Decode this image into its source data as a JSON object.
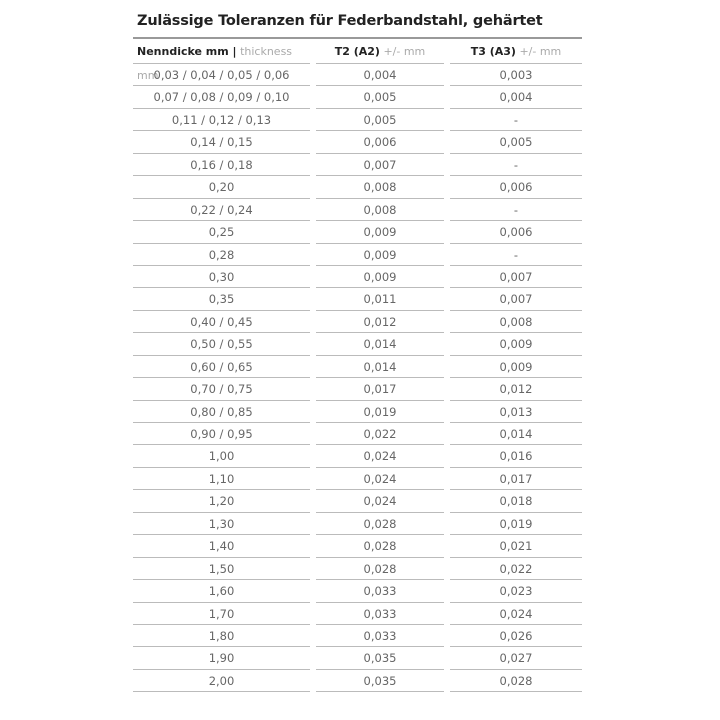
{
  "title": "Zulässige Toleranzen für Federbandstahl, gehärtet",
  "headers": [
    {
      "bold": "Nenndicke mm |",
      "light": "thickness mm"
    },
    {
      "bold": "T2 (A2)",
      "light": "+/- mm"
    },
    {
      "bold": "T3 (A3)",
      "light": "+/- mm"
    }
  ],
  "rows": [
    [
      "0,03 / 0,04 / 0,05 / 0,06",
      "0,004",
      "0,003"
    ],
    [
      "0,07 / 0,08 / 0,09 / 0,10",
      "0,005",
      "0,004"
    ],
    [
      "0,11 / 0,12 / 0,13",
      "0,005",
      "-"
    ],
    [
      "0,14 / 0,15",
      "0,006",
      "0,005"
    ],
    [
      "0,16 / 0,18",
      "0,007",
      "-"
    ],
    [
      "0,20",
      "0,008",
      "0,006"
    ],
    [
      "0,22 / 0,24",
      "0,008",
      "-"
    ],
    [
      "0,25",
      "0,009",
      "0,006"
    ],
    [
      "0,28",
      "0,009",
      "-"
    ],
    [
      "0,30",
      "0,009",
      "0,007"
    ],
    [
      "0,35",
      "0,011",
      "0,007"
    ],
    [
      "0,40 / 0,45",
      "0,012",
      "0,008"
    ],
    [
      "0,50 / 0,55",
      "0,014",
      "0,009"
    ],
    [
      "0,60 / 0,65",
      "0,014",
      "0,009"
    ],
    [
      "0,70 / 0,75",
      "0,017",
      "0,012"
    ],
    [
      "0,80 / 0,85",
      "0,019",
      "0,013"
    ],
    [
      "0,90 / 0,95",
      "0,022",
      "0,014"
    ],
    [
      "1,00",
      "0,024",
      "0,016"
    ],
    [
      "1,10",
      "0,024",
      "0,017"
    ],
    [
      "1,20",
      "0,024",
      "0,018"
    ],
    [
      "1,30",
      "0,028",
      "0,019"
    ],
    [
      "1,40",
      "0,028",
      "0,021"
    ],
    [
      "1,50",
      "0,028",
      "0,022"
    ],
    [
      "1,60",
      "0,033",
      "0,023"
    ],
    [
      "1,70",
      "0,033",
      "0,024"
    ],
    [
      "1,80",
      "0,033",
      "0,026"
    ],
    [
      "1,90",
      "0,035",
      "0,027"
    ],
    [
      "2,00",
      "0,035",
      "0,028"
    ]
  ]
}
